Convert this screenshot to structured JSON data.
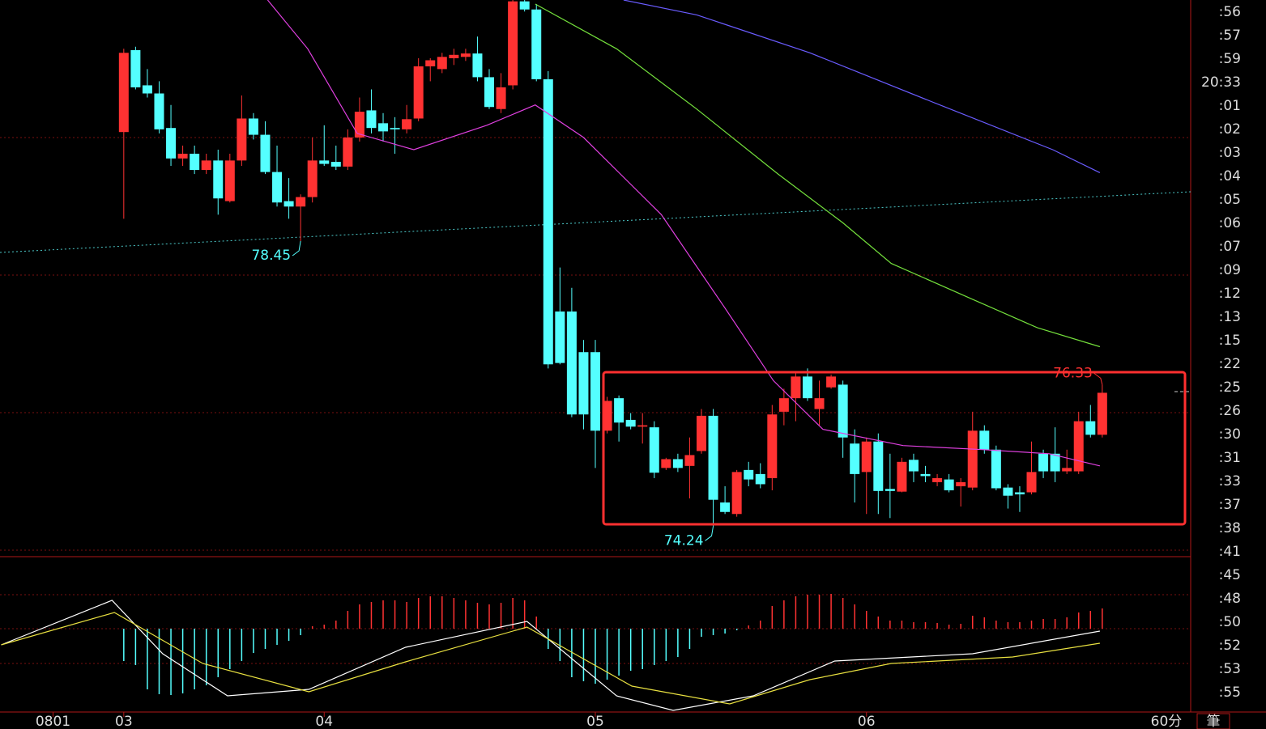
{
  "chart_data": {
    "type": "candlestick",
    "xlim": [
      -10.5,
      90.5
    ],
    "ylim": [
      73.79,
      82.01
    ],
    "up_color": "#ff3232",
    "down_color": "#54ffff",
    "x_ticks": [
      {
        "value": -6,
        "label": "0801"
      },
      {
        "value": 0,
        "label": "03"
      },
      {
        "value": 17,
        "label": "04"
      },
      {
        "value": 40,
        "label": "05"
      },
      {
        "value": 63,
        "label": "06"
      }
    ],
    "ohlc": [
      [
        80.06,
        81.29,
        78.78,
        81.23
      ],
      [
        81.27,
        81.32,
        80.69,
        80.72
      ],
      [
        80.75,
        80.99,
        80.57,
        80.63
      ],
      [
        80.63,
        80.81,
        80.04,
        80.1
      ],
      [
        80.12,
        80.46,
        79.56,
        79.67
      ],
      [
        79.67,
        79.86,
        79.56,
        79.74
      ],
      [
        79.74,
        79.86,
        79.44,
        79.5
      ],
      [
        79.5,
        79.74,
        79.44,
        79.64
      ],
      [
        79.64,
        79.8,
        78.84,
        79.08
      ],
      [
        79.04,
        79.74,
        79.02,
        79.64
      ],
      [
        79.64,
        80.6,
        79.56,
        80.26
      ],
      [
        80.26,
        80.34,
        79.95,
        80.02
      ],
      [
        80.02,
        80.22,
        79.44,
        79.47
      ],
      [
        79.47,
        79.86,
        78.96,
        79.02
      ],
      [
        79.04,
        79.38,
        78.78,
        78.96
      ],
      [
        78.96,
        79.14,
        78.45,
        79.1
      ],
      [
        79.1,
        79.98,
        79.02,
        79.64
      ],
      [
        79.64,
        80.16,
        79.56,
        79.59
      ],
      [
        79.62,
        79.86,
        79.5,
        79.55
      ],
      [
        79.55,
        80.1,
        79.5,
        79.98
      ],
      [
        79.98,
        80.57,
        79.92,
        80.36
      ],
      [
        80.38,
        80.69,
        80.04,
        80.12
      ],
      [
        80.19,
        80.34,
        79.92,
        80.07
      ],
      [
        80.12,
        80.28,
        79.74,
        80.1
      ],
      [
        80.1,
        80.46,
        80.04,
        80.25
      ],
      [
        80.26,
        81.15,
        80.22,
        81.03
      ],
      [
        81.03,
        81.15,
        80.81,
        81.12
      ],
      [
        80.99,
        81.23,
        80.93,
        81.17
      ],
      [
        81.15,
        81.29,
        81.05,
        81.2
      ],
      [
        81.17,
        81.29,
        81.11,
        81.22
      ],
      [
        81.22,
        81.47,
        80.81,
        80.87
      ],
      [
        80.87,
        80.99,
        80.4,
        80.43
      ],
      [
        80.4,
        80.93,
        80.34,
        80.72
      ],
      [
        80.75,
        82.01,
        80.69,
        81.99
      ],
      [
        81.99,
        82.01,
        81.84,
        81.87
      ],
      [
        81.87,
        81.95,
        80.81,
        80.84
      ],
      [
        80.84,
        80.96,
        76.57,
        76.63
      ],
      [
        77.41,
        78.06,
        76.63,
        76.65
      ],
      [
        77.41,
        77.76,
        75.85,
        75.89
      ],
      [
        76.81,
        76.99,
        75.67,
        75.89
      ],
      [
        76.81,
        76.99,
        75.1,
        75.65
      ],
      [
        75.65,
        76.15,
        75.61,
        76.09
      ],
      [
        76.13,
        76.17,
        75.49,
        75.77
      ],
      [
        75.81,
        75.91,
        75.67,
        75.71
      ],
      [
        75.71,
        75.91,
        75.46,
        75.73
      ],
      [
        75.7,
        75.79,
        74.95,
        75.03
      ],
      [
        75.1,
        75.25,
        75.07,
        75.23
      ],
      [
        75.23,
        75.31,
        75.04,
        75.1
      ],
      [
        75.13,
        75.55,
        74.65,
        75.29
      ],
      [
        75.35,
        75.97,
        75.31,
        75.87
      ],
      [
        75.87,
        75.97,
        74.24,
        74.63
      ],
      [
        74.59,
        74.83,
        74.42,
        74.45
      ],
      [
        74.42,
        75.07,
        74.38,
        75.04
      ],
      [
        75.07,
        75.19,
        74.83,
        74.93
      ],
      [
        75.01,
        75.17,
        74.8,
        74.86
      ],
      [
        74.95,
        76.03,
        74.77,
        75.89
      ],
      [
        75.93,
        76.27,
        75.73,
        76.13
      ],
      [
        76.13,
        76.51,
        75.79,
        76.45
      ],
      [
        76.45,
        76.57,
        76.09,
        76.13
      ],
      [
        75.97,
        76.39,
        75.73,
        76.13
      ],
      [
        76.29,
        76.48,
        76.27,
        76.45
      ],
      [
        76.33,
        76.39,
        75.25,
        75.55
      ],
      [
        75.46,
        75.67,
        74.59,
        75.01
      ],
      [
        75.04,
        75.55,
        74.42,
        75.49
      ],
      [
        75.49,
        75.61,
        74.42,
        74.76
      ],
      [
        74.79,
        75.31,
        74.36,
        74.76
      ],
      [
        74.75,
        75.25,
        74.74,
        75.19
      ],
      [
        75.22,
        75.31,
        74.89,
        75.05
      ],
      [
        75.01,
        75.13,
        74.89,
        74.98
      ],
      [
        74.89,
        75.01,
        74.83,
        74.95
      ],
      [
        74.93,
        75.01,
        74.74,
        74.77
      ],
      [
        74.83,
        74.95,
        74.53,
        74.89
      ],
      [
        74.81,
        75.93,
        74.77,
        75.65
      ],
      [
        75.65,
        75.73,
        75.31,
        75.37
      ],
      [
        75.37,
        75.43,
        74.77,
        74.8
      ],
      [
        74.81,
        74.86,
        74.5,
        74.69
      ],
      [
        74.74,
        74.83,
        74.45,
        74.71
      ],
      [
        74.74,
        75.49,
        74.71,
        75.04
      ],
      [
        75.31,
        75.37,
        74.95,
        75.05
      ],
      [
        75.31,
        75.7,
        74.89,
        75.05
      ],
      [
        75.05,
        75.37,
        75.01,
        75.1
      ],
      [
        75.05,
        75.93,
        75.01,
        75.79
      ],
      [
        75.79,
        76.03,
        75.55,
        75.59
      ],
      [
        75.59,
        76.33,
        75.55,
        76.21
      ]
    ],
    "moving_averages": [
      {
        "color": "#e040e0",
        "x": [
          12.2,
          15.6,
          19.8,
          24.6,
          30.8,
          34.9,
          39,
          45.6,
          51,
          55.1,
          59.3,
          66.1,
          73,
          78.5,
          82.8
        ],
        "values": [
          82.01,
          81.29,
          80.04,
          79.8,
          80.16,
          80.46,
          79.98,
          78.84,
          77.46,
          76.39,
          75.67,
          75.43,
          75.37,
          75.31,
          75.13
        ]
      },
      {
        "color": "#74e03c",
        "x": [
          34.9,
          41.8,
          48.6,
          55.5,
          61,
          65.1,
          72,
          77.5,
          82.8
        ],
        "values": [
          81.95,
          81.29,
          80.4,
          79.44,
          78.72,
          78.12,
          77.59,
          77.17,
          76.89
        ]
      },
      {
        "color": "#6a5cff",
        "x": [
          42.4,
          48.6,
          58.2,
          68.5,
          78.8,
          82.8
        ],
        "values": [
          82.01,
          81.79,
          81.23,
          80.51,
          79.8,
          79.46
        ]
      }
    ],
    "annotations": [
      {
        "x": 15,
        "value": 78.45,
        "color": "#54ffff"
      },
      {
        "x": 50,
        "value": 74.24,
        "color": "#54ffff"
      },
      {
        "x": 83,
        "value": 76.33,
        "color": "#ff3232"
      }
    ],
    "macd": {
      "ylim": [
        -103,
        87
      ],
      "hist": [
        -40,
        -45,
        -75,
        -81,
        -82,
        -80,
        -75,
        -70,
        -60,
        -50,
        -40,
        -30,
        -25,
        -20,
        -15,
        -8,
        3,
        5,
        10,
        22,
        30,
        33,
        35,
        35,
        33,
        38,
        40,
        40,
        38,
        35,
        32,
        30,
        32,
        38,
        35,
        15,
        -25,
        -40,
        -60,
        -65,
        -68,
        -63,
        -58,
        -52,
        -50,
        -45,
        -40,
        -35,
        -25,
        -10,
        -8,
        -6,
        -2,
        4,
        10,
        28,
        35,
        40,
        42,
        42,
        43,
        38,
        30,
        22,
        15,
        10,
        10,
        8,
        8,
        7,
        5,
        6,
        16,
        14,
        10,
        8,
        8,
        10,
        12,
        12,
        14,
        20,
        22,
        25
      ],
      "lines": [
        {
          "color": "#ffffff",
          "x": [
            -10.4,
            -1,
            3.3,
            8.8,
            15.7,
            23.9,
            34.2,
            41.8,
            46.6,
            53.4,
            60.3,
            72,
            82.8
          ],
          "values": [
            -20,
            35,
            -31,
            -83,
            -75,
            -23,
            9,
            -83,
            -101,
            -83,
            -40,
            -31,
            -3
          ]
        },
        {
          "color": "#e8e040",
          "x": [
            -10.4,
            -0.8,
            6.7,
            15.7,
            23.9,
            34.2,
            43.1,
            51.4,
            58.2,
            65.1,
            75.4,
            82.8
          ],
          "values": [
            -20,
            20,
            -43,
            -78,
            -41,
            2,
            -71,
            -93,
            -63,
            -43,
            -35,
            -18
          ]
        }
      ]
    },
    "right_labels": [
      ":56",
      ":57",
      ":59",
      "20:33",
      ":01",
      ":02",
      ":03",
      ":04",
      ":05",
      ":06",
      ":07",
      ":09",
      ":12",
      ":13",
      ":15",
      ":22",
      ":25",
      ":26",
      ":30",
      ":31",
      ":33",
      ":37",
      ":38",
      ":41",
      ":45",
      ":48",
      ":50",
      ":52",
      ":53",
      ":55"
    ],
    "period": "60分",
    "tab": "筆"
  }
}
